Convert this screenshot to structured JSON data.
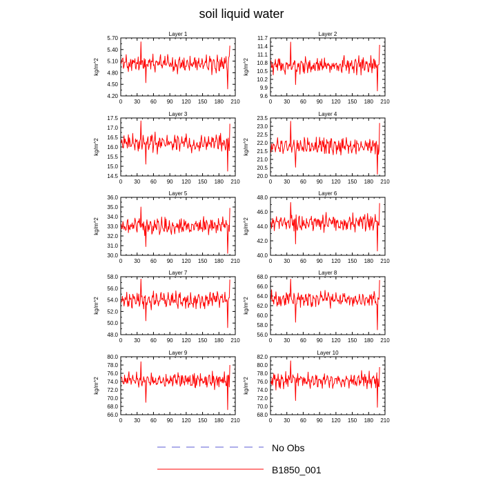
{
  "colors": {
    "series": "#ff0000",
    "no_obs": "#5b5bd6"
  },
  "chart_data": {
    "type": "line",
    "title": "soil liquid water",
    "x_ticks": [
      0,
      30,
      60,
      90,
      120,
      150,
      180,
      210
    ],
    "xlim": [
      0,
      210
    ],
    "n_points": 200,
    "legend": [
      {
        "name": "No Obs",
        "style": "dashed",
        "color": "#5b5bd6"
      },
      {
        "name": "B1850_001",
        "style": "solid",
        "color": "#ff0000"
      }
    ],
    "panels": [
      {
        "title": "Layer 1",
        "ylabel": "kg/m^2",
        "ylim": [
          4.2,
          5.7
        ],
        "yticks": [
          "4.20",
          "4.50",
          "4.80",
          "5.10",
          "5.40",
          "5.70"
        ],
        "ystep": 0.3,
        "mean": 5.03,
        "amplitude": 0.22,
        "min": 4.38,
        "max": 5.6,
        "last": 5.5
      },
      {
        "title": "Layer 2",
        "ylabel": "kg/m^2",
        "ylim": [
          9.6,
          11.7
        ],
        "yticks": [
          "9.6",
          "9.9",
          "10.2",
          "10.5",
          "10.8",
          "11.1",
          "11.4",
          "11.7"
        ],
        "ystep": 0.3,
        "mean": 10.7,
        "amplitude": 0.3,
        "min": 9.78,
        "max": 11.55,
        "last": 11.45
      },
      {
        "title": "Layer 3",
        "ylabel": "kg/m^2",
        "ylim": [
          14.5,
          17.5
        ],
        "yticks": [
          "14.5",
          "15.0",
          "15.5",
          "16.0",
          "16.5",
          "17.0",
          "17.5"
        ],
        "ystep": 0.5,
        "mean": 16.2,
        "amplitude": 0.45,
        "min": 14.75,
        "max": 17.35,
        "last": 17.2
      },
      {
        "title": "Layer 4",
        "ylabel": "kg/m^2",
        "ylim": [
          20.0,
          23.5
        ],
        "yticks": [
          "20.0",
          "20.5",
          "21.0",
          "21.5",
          "22.0",
          "22.5",
          "23.0",
          "23.5"
        ],
        "ystep": 0.5,
        "mean": 21.8,
        "amplitude": 0.5,
        "min": 20.1,
        "max": 23.3,
        "last": 23.2
      },
      {
        "title": "Layer 5",
        "ylabel": "kg/m^2",
        "ylim": [
          30.0,
          36.0
        ],
        "yticks": [
          "30.0",
          "31.0",
          "32.0",
          "33.0",
          "34.0",
          "35.0",
          "36.0"
        ],
        "ystep": 1.0,
        "mean": 33.0,
        "amplitude": 0.9,
        "min": 30.2,
        "max": 35.0,
        "last": 34.9
      },
      {
        "title": "Layer 6",
        "ylabel": "kg/m^2",
        "ylim": [
          40.0,
          48.0
        ],
        "yticks": [
          "40.0",
          "42.0",
          "44.0",
          "46.0",
          "48.0"
        ],
        "ystep": 2.0,
        "mean": 44.5,
        "amplitude": 1.1,
        "min": 40.6,
        "max": 47.3,
        "last": 47.2
      },
      {
        "title": "Layer 7",
        "ylabel": "kg/m^2",
        "ylim": [
          48.0,
          58.0
        ],
        "yticks": [
          "48.0",
          "50.0",
          "52.0",
          "54.0",
          "56.0",
          "58.0"
        ],
        "ystep": 2.0,
        "mean": 54.0,
        "amplitude": 1.4,
        "min": 49.2,
        "max": 57.6,
        "last": 57.5
      },
      {
        "title": "Layer 8",
        "ylabel": "kg/m^2",
        "ylim": [
          56.0,
          68.0
        ],
        "yticks": [
          "56.0",
          "58.0",
          "60.0",
          "62.0",
          "64.0",
          "66.0",
          "68.0"
        ],
        "ystep": 2.0,
        "mean": 63.3,
        "amplitude": 1.6,
        "min": 57.0,
        "max": 67.5,
        "last": 67.3
      },
      {
        "title": "Layer 9",
        "ylabel": "kg/m^2",
        "ylim": [
          66.0,
          80.0
        ],
        "yticks": [
          "66.0",
          "68.0",
          "70.0",
          "72.0",
          "74.0",
          "76.0",
          "78.0",
          "80.0"
        ],
        "ystep": 2.0,
        "mean": 74.3,
        "amplitude": 1.8,
        "min": 67.2,
        "max": 78.8,
        "last": 78.0
      },
      {
        "title": "Layer 10",
        "ylabel": "kg/m^2",
        "ylim": [
          68.0,
          82.0
        ],
        "yticks": [
          "68.0",
          "70.0",
          "72.0",
          "74.0",
          "76.0",
          "78.0",
          "80.0",
          "82.0"
        ],
        "ystep": 2.0,
        "mean": 76.3,
        "amplitude": 1.8,
        "min": 69.8,
        "max": 81.0,
        "last": 79.5
      }
    ]
  }
}
